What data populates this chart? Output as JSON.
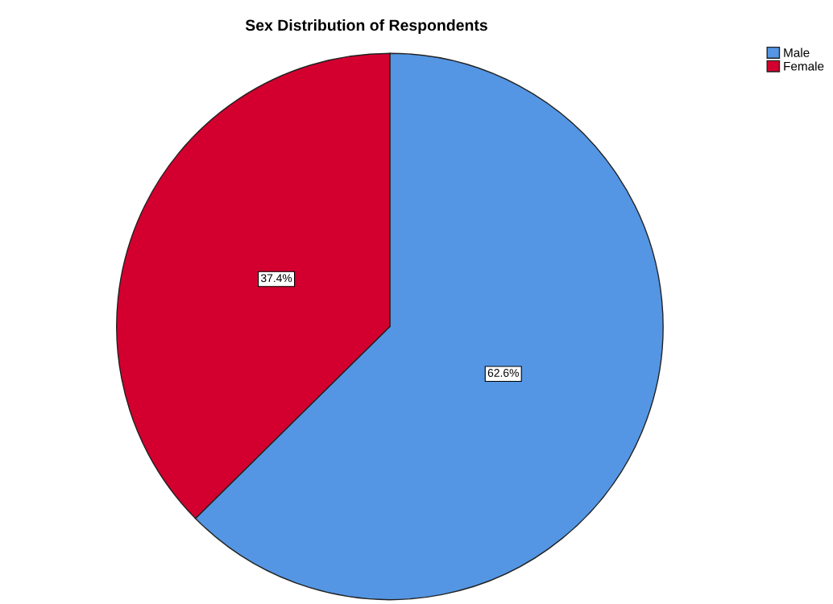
{
  "chart_data": {
    "type": "pie",
    "title": "Sex Distribution of Respondents",
    "categories": [
      "Male",
      "Female"
    ],
    "values": [
      62.6,
      37.4
    ],
    "colors": [
      "#5496e3",
      "#d3002f"
    ],
    "value_labels": [
      "62.6%",
      "37.4%"
    ],
    "legend": "top right"
  }
}
